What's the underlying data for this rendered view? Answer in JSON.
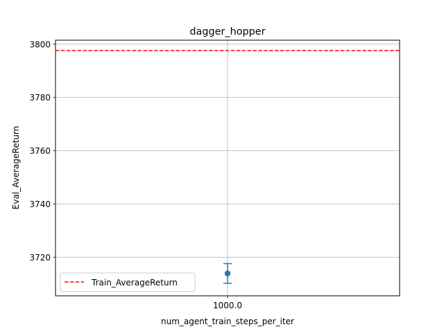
{
  "chart_data": {
    "type": "scatter",
    "title": "dagger_hopper",
    "xlabel": "num_agent_train_steps_per_iter",
    "ylabel": "Eval_AverageReturn",
    "x_tick_labels": [
      "1000.0"
    ],
    "y_ticks": [
      3720,
      3740,
      3760,
      3780,
      3800
    ],
    "ylim": [
      3705.5,
      3801.5
    ],
    "grid": true,
    "legend": {
      "position": "lower-left",
      "entries": [
        "Train_AverageReturn"
      ]
    },
    "series": [
      {
        "kind": "errorbar",
        "x": [
          "1000.0"
        ],
        "values": [
          3713.9
        ],
        "error": [
          3.7
        ],
        "color": "#1f77b4"
      }
    ],
    "reference_lines": [
      {
        "name": "Train_AverageReturn",
        "y": 3797.6,
        "style": "dashed",
        "color": "#ff0000"
      }
    ]
  }
}
